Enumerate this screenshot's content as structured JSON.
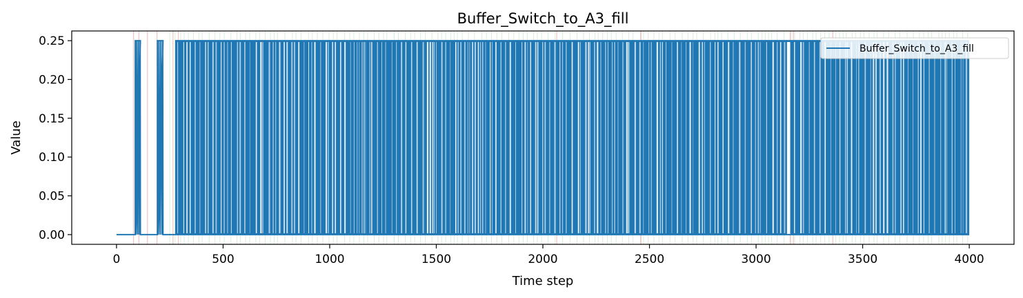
{
  "chart_data": {
    "type": "line",
    "title": "Buffer_Switch_to_A3_fill",
    "xlabel": "Time step",
    "ylabel": "Value",
    "xlim": [
      -210,
      4210
    ],
    "ylim": [
      -0.0125,
      0.2625
    ],
    "xticks": [
      0,
      500,
      1000,
      1500,
      2000,
      2500,
      3000,
      3500,
      4000
    ],
    "xtick_labels": [
      "0",
      "500",
      "1000",
      "1500",
      "2000",
      "2500",
      "3000",
      "3500",
      "4000"
    ],
    "yticks": [
      0.0,
      0.05,
      0.1,
      0.15,
      0.2,
      0.25
    ],
    "ytick_labels": [
      "0.00",
      "0.05",
      "0.10",
      "0.15",
      "0.20",
      "0.25"
    ],
    "grid": false,
    "legend_position": "top-right",
    "series": [
      {
        "name": "Buffer_Switch_to_A3_fill",
        "color": "#1f77b4",
        "levels": [
          0.0,
          0.25
        ],
        "pulses_on_at_0_25": [
          [
            88,
            112
          ],
          [
            192,
            218
          ],
          [
            275,
            4000
          ]
        ],
        "idle_ranges_at_0": [
          [
            0,
            88
          ],
          [
            112,
            192
          ],
          [
            218,
            275
          ]
        ],
        "gaps_at_0_25": [
          3145,
          3160
        ],
        "x_end": 4000,
        "description_values": "binary signal alternating rapidly between 0.00 and 0.25 over time steps 0-4000"
      }
    ],
    "background_markers": {
      "red_lines_x": [
        80,
        105,
        145,
        190,
        265,
        290,
        2065,
        2460,
        3160,
        3175,
        3360
      ],
      "green_band_x": [
        250,
        4000
      ]
    }
  }
}
